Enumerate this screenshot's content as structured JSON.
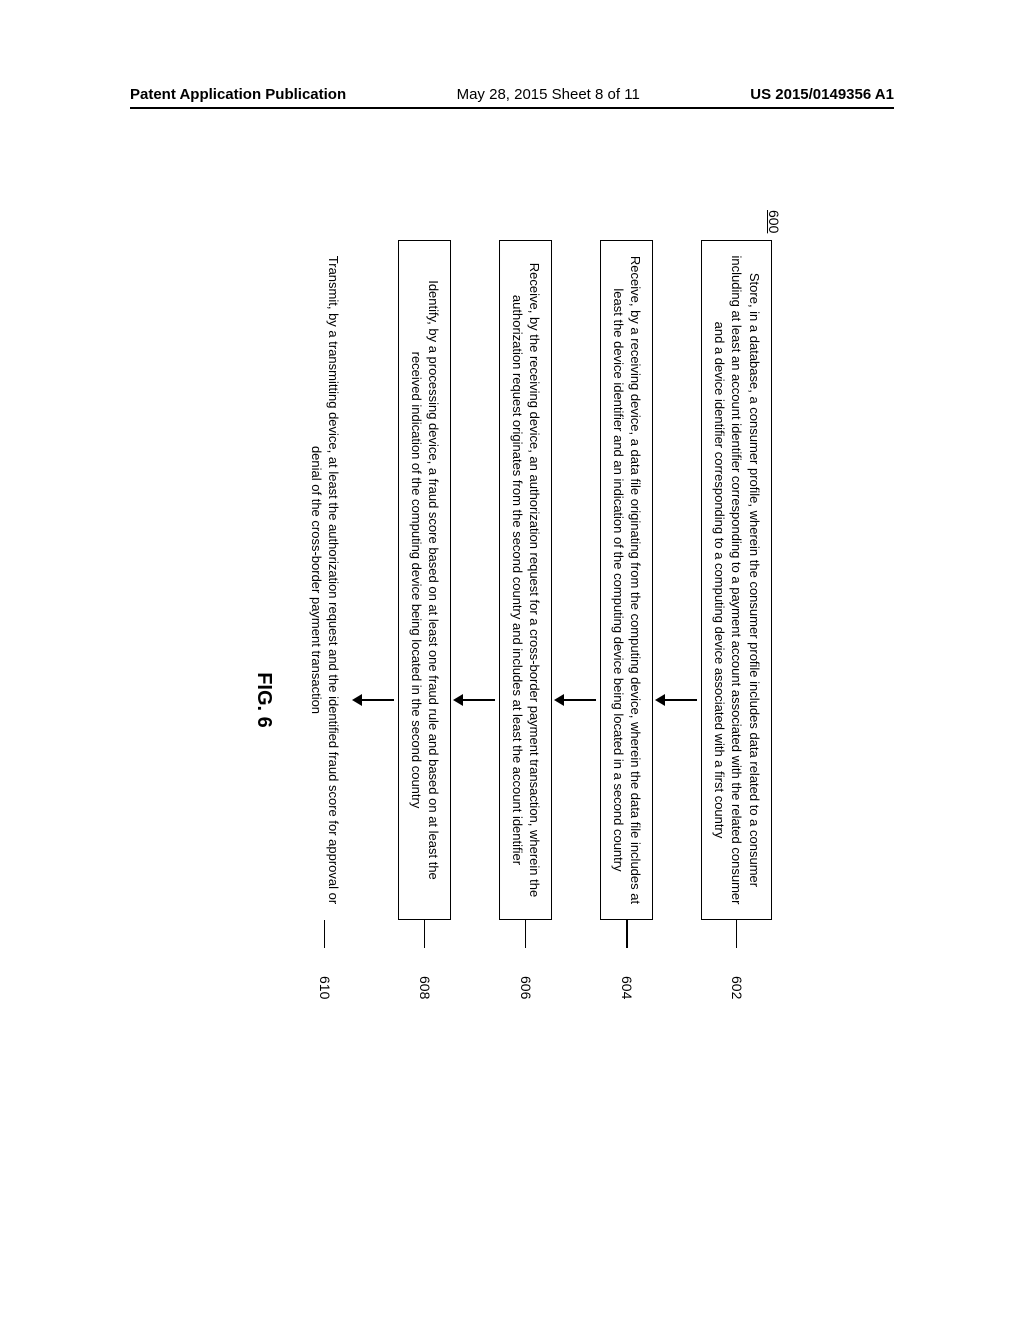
{
  "header": {
    "left": "Patent Application Publication",
    "center": "May 28, 2015  Sheet 8 of 11",
    "right": "US 2015/0149356 A1"
  },
  "flowchart": {
    "id": "600",
    "figure_label": "FIG. 6",
    "steps": [
      {
        "num": "602",
        "bordered": true,
        "text": "Store, in a database, a consumer profile, wherein the consumer profile includes data related to a consumer including at least an account identifier corresponding to a payment account associated with the related consumer and a device identifier corresponding to a computing device associated with a first country"
      },
      {
        "num": "604",
        "bordered": true,
        "text": "Receive, by a receiving device, a data file originating from the computing device, wherein the data file includes at least the device identifier and an indication of the computing device being located in a second country"
      },
      {
        "num": "606",
        "bordered": true,
        "text": "Receive, by the receiving device, an authorization request for a cross-border payment transaction, wherein the authorization request originates from the second country and includes at least the account identifier"
      },
      {
        "num": "608",
        "bordered": true,
        "text": "Identify, by a processing device, a fraud score based on at least one fraud rule and based on at least the received indication of the computing device being located in the second country"
      },
      {
        "num": "610",
        "bordered": false,
        "text": "Transmit, by a transmitting device, at least the authorization request and the identified fraud score for approval or denial of the cross-border payment transaction"
      }
    ]
  }
}
